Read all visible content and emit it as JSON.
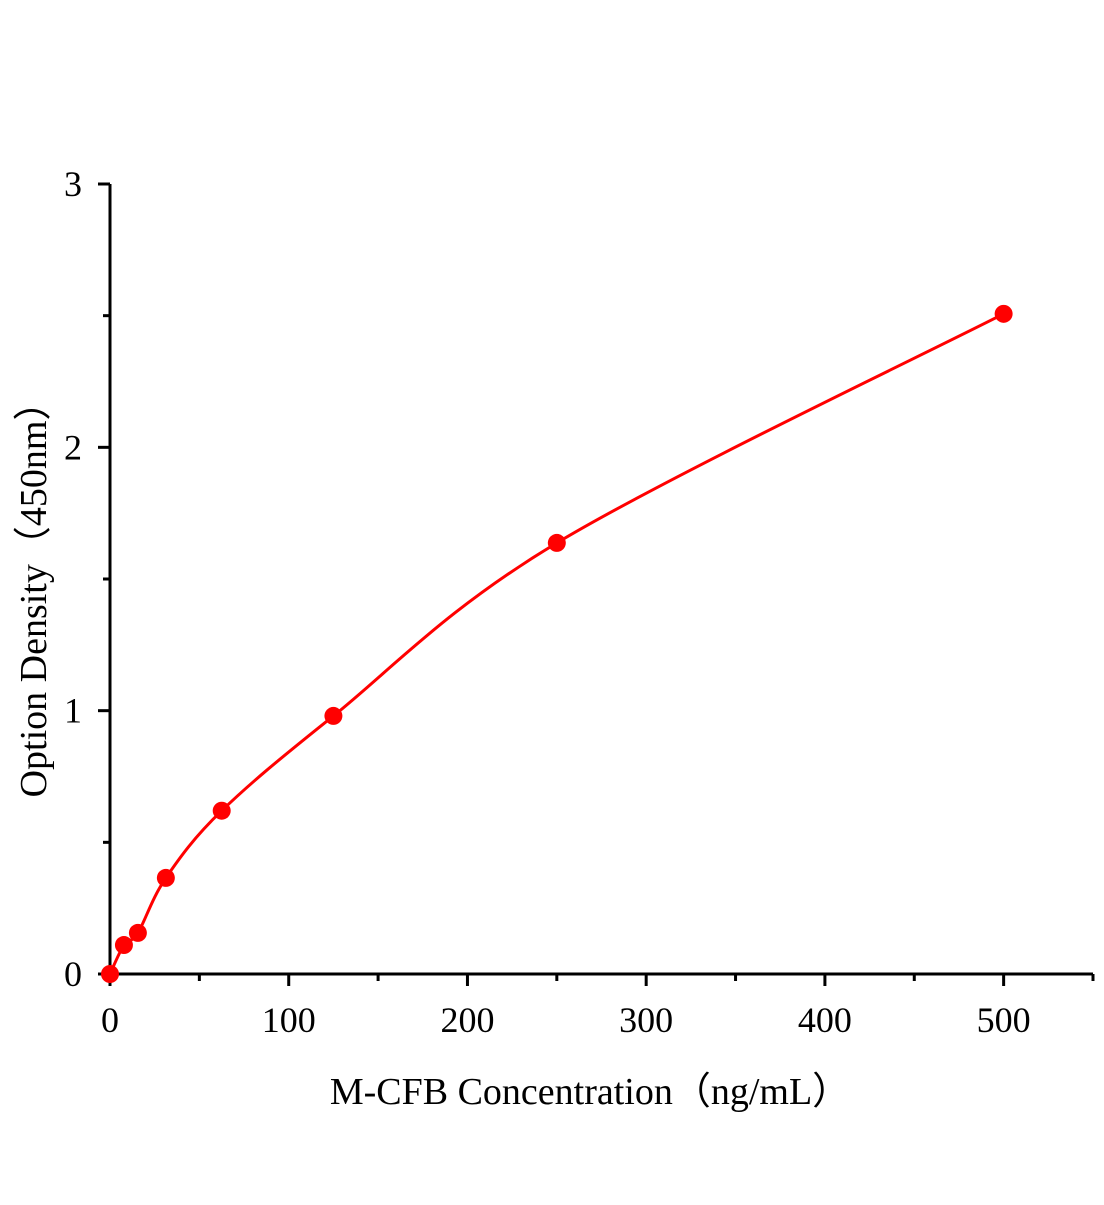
{
  "chart_data": {
    "type": "scatter",
    "title": "",
    "xlabel": "M-CFB Concentration（ng/mL）",
    "ylabel": "Option Density（450nm）",
    "xlim": [
      0,
      550
    ],
    "ylim": [
      0,
      3
    ],
    "xticks": [
      0,
      100,
      200,
      300,
      400,
      500
    ],
    "yticks": [
      0,
      1,
      2,
      3
    ],
    "grid": false,
    "legend": "none",
    "color": "#ff0000",
    "fit_curve": true,
    "series": [
      {
        "x": [
          0,
          7.8,
          15.6,
          31.25,
          62.5,
          125,
          250,
          500
        ],
        "y": [
          0,
          0.11,
          0.156,
          0.365,
          0.62,
          0.98,
          1.637,
          2.507
        ]
      }
    ]
  }
}
